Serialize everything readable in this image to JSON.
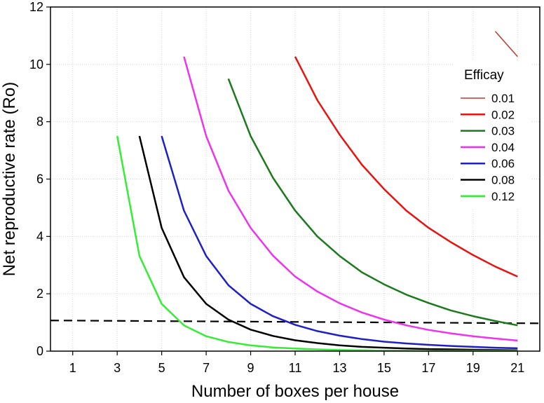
{
  "chart_data": {
    "type": "line",
    "title": "",
    "xlabel": "Number of boxes per house",
    "ylabel": "Net reproductive rate (Ro)",
    "xlim": [
      0,
      22
    ],
    "ylim": [
      0,
      12
    ],
    "xticks": [
      1,
      3,
      5,
      7,
      9,
      11,
      13,
      15,
      17,
      19,
      21
    ],
    "yticks": [
      0,
      2,
      4,
      6,
      8,
      10,
      12
    ],
    "grid": true,
    "legend": {
      "title": "Efficay",
      "placement": "right"
    },
    "series": [
      {
        "name": "0.01",
        "color": "#c0392b",
        "stroke_width": 1.5,
        "x": [
          20,
          21
        ],
        "y": [
          11.15,
          10.27
        ]
      },
      {
        "name": "0.02",
        "color": "#e8130f",
        "stroke_width": 2.5,
        "x": [
          11,
          12,
          13,
          14,
          15,
          16,
          17,
          18,
          19,
          20,
          21
        ],
        "y": [
          10.27,
          8.75,
          7.55,
          6.5,
          5.65,
          4.9,
          4.3,
          3.8,
          3.35,
          2.95,
          2.6
        ]
      },
      {
        "name": "0.03",
        "color": "#1b7a1b",
        "stroke_width": 2.5,
        "x": [
          8,
          9,
          10,
          11,
          12,
          13,
          14,
          15,
          16,
          17,
          18,
          19,
          20,
          21
        ],
        "y": [
          9.5,
          7.5,
          6.05,
          4.9,
          4.0,
          3.32,
          2.75,
          2.33,
          1.97,
          1.68,
          1.42,
          1.22,
          1.05,
          0.9
        ]
      },
      {
        "name": "0.04",
        "color": "#ee33ee",
        "stroke_width": 2.5,
        "x": [
          6,
          7,
          8,
          9,
          10,
          11,
          12,
          13,
          14,
          15,
          16,
          17,
          18,
          19,
          20,
          21
        ],
        "y": [
          10.27,
          7.5,
          5.6,
          4.3,
          3.33,
          2.6,
          2.08,
          1.67,
          1.35,
          1.1,
          0.9,
          0.74,
          0.62,
          0.52,
          0.44,
          0.37
        ]
      },
      {
        "name": "0.06",
        "color": "#1f1fc8",
        "stroke_width": 2.5,
        "x": [
          5,
          6,
          7,
          8,
          9,
          10,
          11,
          12,
          13,
          14,
          15,
          16,
          17,
          18,
          19,
          20,
          21
        ],
        "y": [
          7.5,
          4.9,
          3.32,
          2.3,
          1.65,
          1.22,
          0.92,
          0.7,
          0.54,
          0.42,
          0.33,
          0.27,
          0.22,
          0.18,
          0.15,
          0.12,
          0.1
        ]
      },
      {
        "name": "0.08",
        "color": "#000000",
        "stroke_width": 2.5,
        "x": [
          4,
          5,
          6,
          7,
          8,
          9,
          10,
          11,
          12,
          13,
          14,
          15,
          16,
          17,
          18,
          19,
          20,
          21
        ],
        "y": [
          7.5,
          4.3,
          2.58,
          1.65,
          1.1,
          0.75,
          0.53,
          0.38,
          0.28,
          0.2,
          0.15,
          0.12,
          0.09,
          0.07,
          0.06,
          0.05,
          0.04,
          0.03
        ]
      },
      {
        "name": "0.12",
        "color": "#33ee33",
        "stroke_width": 2.5,
        "x": [
          3,
          4,
          5,
          6,
          7,
          8,
          9,
          10,
          11,
          12,
          13,
          14,
          15,
          16,
          17,
          18,
          19,
          20,
          21
        ],
        "y": [
          7.5,
          3.32,
          1.65,
          0.9,
          0.52,
          0.32,
          0.2,
          0.13,
          0.09,
          0.06,
          0.04,
          0.03,
          0.02,
          0.02,
          0.01,
          0.01,
          0.01,
          0.01,
          0.01
        ]
      }
    ],
    "reference_line": {
      "style": "dashed",
      "color": "#000000",
      "x": [
        0,
        22
      ],
      "y": [
        1.07,
        0.97
      ]
    }
  }
}
